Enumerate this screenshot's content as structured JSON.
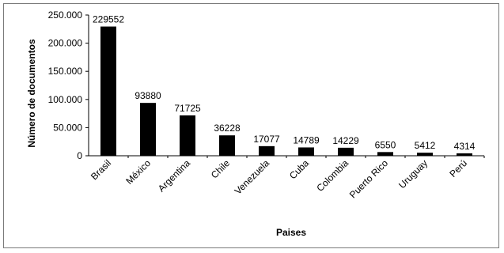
{
  "chart_data": {
    "type": "bar",
    "categories": [
      "Brasil",
      "México",
      "Argentina",
      "Chile",
      "Venezuela",
      "Cuba",
      "Colombia",
      "Puerto Rico",
      "Uruguay",
      "Perú"
    ],
    "values": [
      229552,
      93880,
      71725,
      36228,
      17077,
      14789,
      14229,
      6550,
      5412,
      4314
    ],
    "data_labels": [
      "229552",
      "93880",
      "71725",
      "36228",
      "17077",
      "14789",
      "14229",
      "6550",
      "5412",
      "4314"
    ],
    "title": "",
    "xlabel": "Paises",
    "ylabel": "Número de documentos",
    "ylim": [
      0,
      250000
    ],
    "yticks": [
      0,
      50000,
      100000,
      150000,
      200000,
      250000
    ],
    "ytick_labels": [
      "0",
      "50.000",
      "100.000",
      "150.000",
      "200.000",
      "250.000"
    ],
    "bar_color": "#000000",
    "grid": false,
    "legend": "none"
  }
}
